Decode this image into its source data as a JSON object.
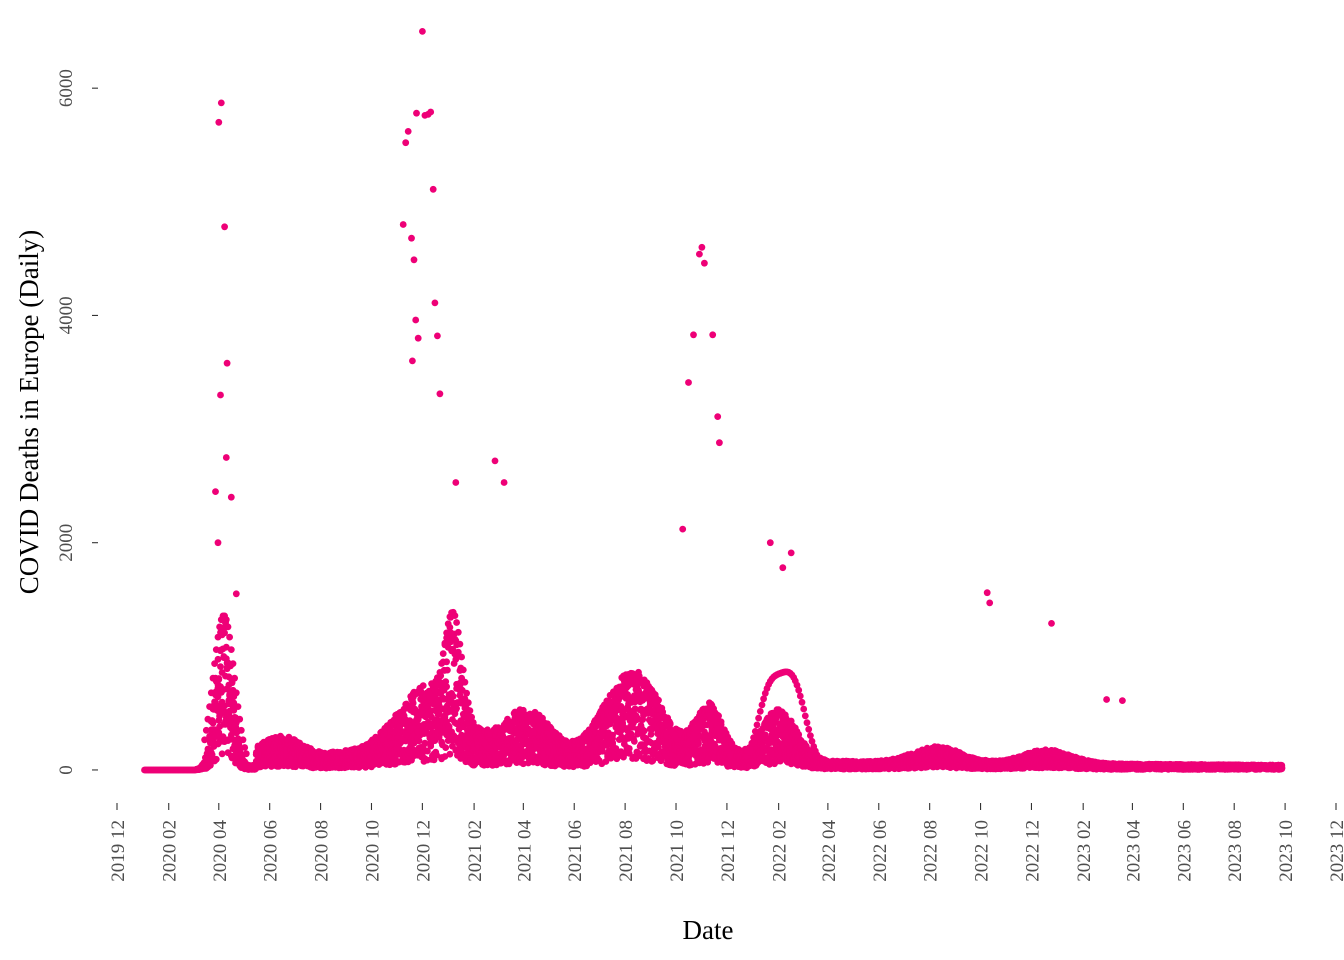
{
  "chart_data": {
    "type": "scatter",
    "title": "",
    "xlabel": "Date",
    "ylabel": "COVID Deaths in Europe (Daily)",
    "x_axis": "date",
    "xlim": [
      "2019-12-01",
      "2023-12-01"
    ],
    "ylim": [
      -150,
      6600
    ],
    "x_ticks": [
      "2019 12",
      "2020 02",
      "2020 04",
      "2020 06",
      "2020 08",
      "2020 10",
      "2020 12",
      "2021 02",
      "2021 04",
      "2021 06",
      "2021 08",
      "2021 10",
      "2021 12",
      "2022 02",
      "2022 04",
      "2022 06",
      "2022 08",
      "2022 10",
      "2022 12",
      "2023 02",
      "2023 04",
      "2023 06",
      "2023 08",
      "2023 10",
      "2023 12"
    ],
    "y_ticks": [
      "0",
      "2000",
      "4000",
      "6000"
    ],
    "grid": false,
    "legend": "none",
    "point_color": "#EE0077",
    "notable_points": [
      {
        "x": "2020-04-01",
        "y": 5700
      },
      {
        "x": "2020-04-04",
        "y": 5870
      },
      {
        "x": "2020-04-08",
        "y": 4780
      },
      {
        "x": "2020-04-11",
        "y": 3580
      },
      {
        "x": "2020-04-03",
        "y": 3300
      },
      {
        "x": "2020-04-10",
        "y": 2750
      },
      {
        "x": "2020-03-28",
        "y": 2450
      },
      {
        "x": "2020-03-31",
        "y": 2000
      },
      {
        "x": "2020-04-16",
        "y": 2400
      },
      {
        "x": "2020-04-22",
        "y": 1550
      },
      {
        "x": "2020-11-08",
        "y": 4800
      },
      {
        "x": "2020-11-11",
        "y": 5520
      },
      {
        "x": "2020-11-14",
        "y": 5620
      },
      {
        "x": "2020-11-18",
        "y": 4680
      },
      {
        "x": "2020-11-21",
        "y": 4490
      },
      {
        "x": "2020-11-24",
        "y": 5780
      },
      {
        "x": "2020-12-01",
        "y": 6500
      },
      {
        "x": "2020-12-04",
        "y": 5760
      },
      {
        "x": "2020-12-08",
        "y": 5770
      },
      {
        "x": "2020-12-11",
        "y": 5790
      },
      {
        "x": "2020-12-14",
        "y": 5110
      },
      {
        "x": "2020-12-16",
        "y": 4110
      },
      {
        "x": "2020-12-19",
        "y": 3820
      },
      {
        "x": "2020-11-26",
        "y": 3800
      },
      {
        "x": "2020-11-23",
        "y": 3960
      },
      {
        "x": "2020-11-19",
        "y": 3600
      },
      {
        "x": "2020-12-22",
        "y": 3310
      },
      {
        "x": "2021-02-26",
        "y": 2720
      },
      {
        "x": "2021-03-09",
        "y": 2530
      },
      {
        "x": "2021-01-10",
        "y": 2530
      },
      {
        "x": "2021-10-29",
        "y": 4540
      },
      {
        "x": "2021-11-01",
        "y": 4600
      },
      {
        "x": "2021-11-04",
        "y": 4460
      },
      {
        "x": "2021-10-22",
        "y": 3830
      },
      {
        "x": "2021-11-14",
        "y": 3830
      },
      {
        "x": "2021-10-16",
        "y": 3410
      },
      {
        "x": "2021-11-20",
        "y": 3110
      },
      {
        "x": "2021-11-22",
        "y": 2880
      },
      {
        "x": "2021-10-09",
        "y": 2120
      },
      {
        "x": "2022-01-22",
        "y": 2000
      },
      {
        "x": "2022-02-06",
        "y": 1780
      },
      {
        "x": "2022-02-16",
        "y": 1910
      },
      {
        "x": "2022-10-09",
        "y": 1560
      },
      {
        "x": "2022-10-12",
        "y": 1470
      },
      {
        "x": "2022-12-25",
        "y": 1290
      },
      {
        "x": "2023-03-01",
        "y": 620
      },
      {
        "x": "2023-03-20",
        "y": 610
      }
    ]
  }
}
